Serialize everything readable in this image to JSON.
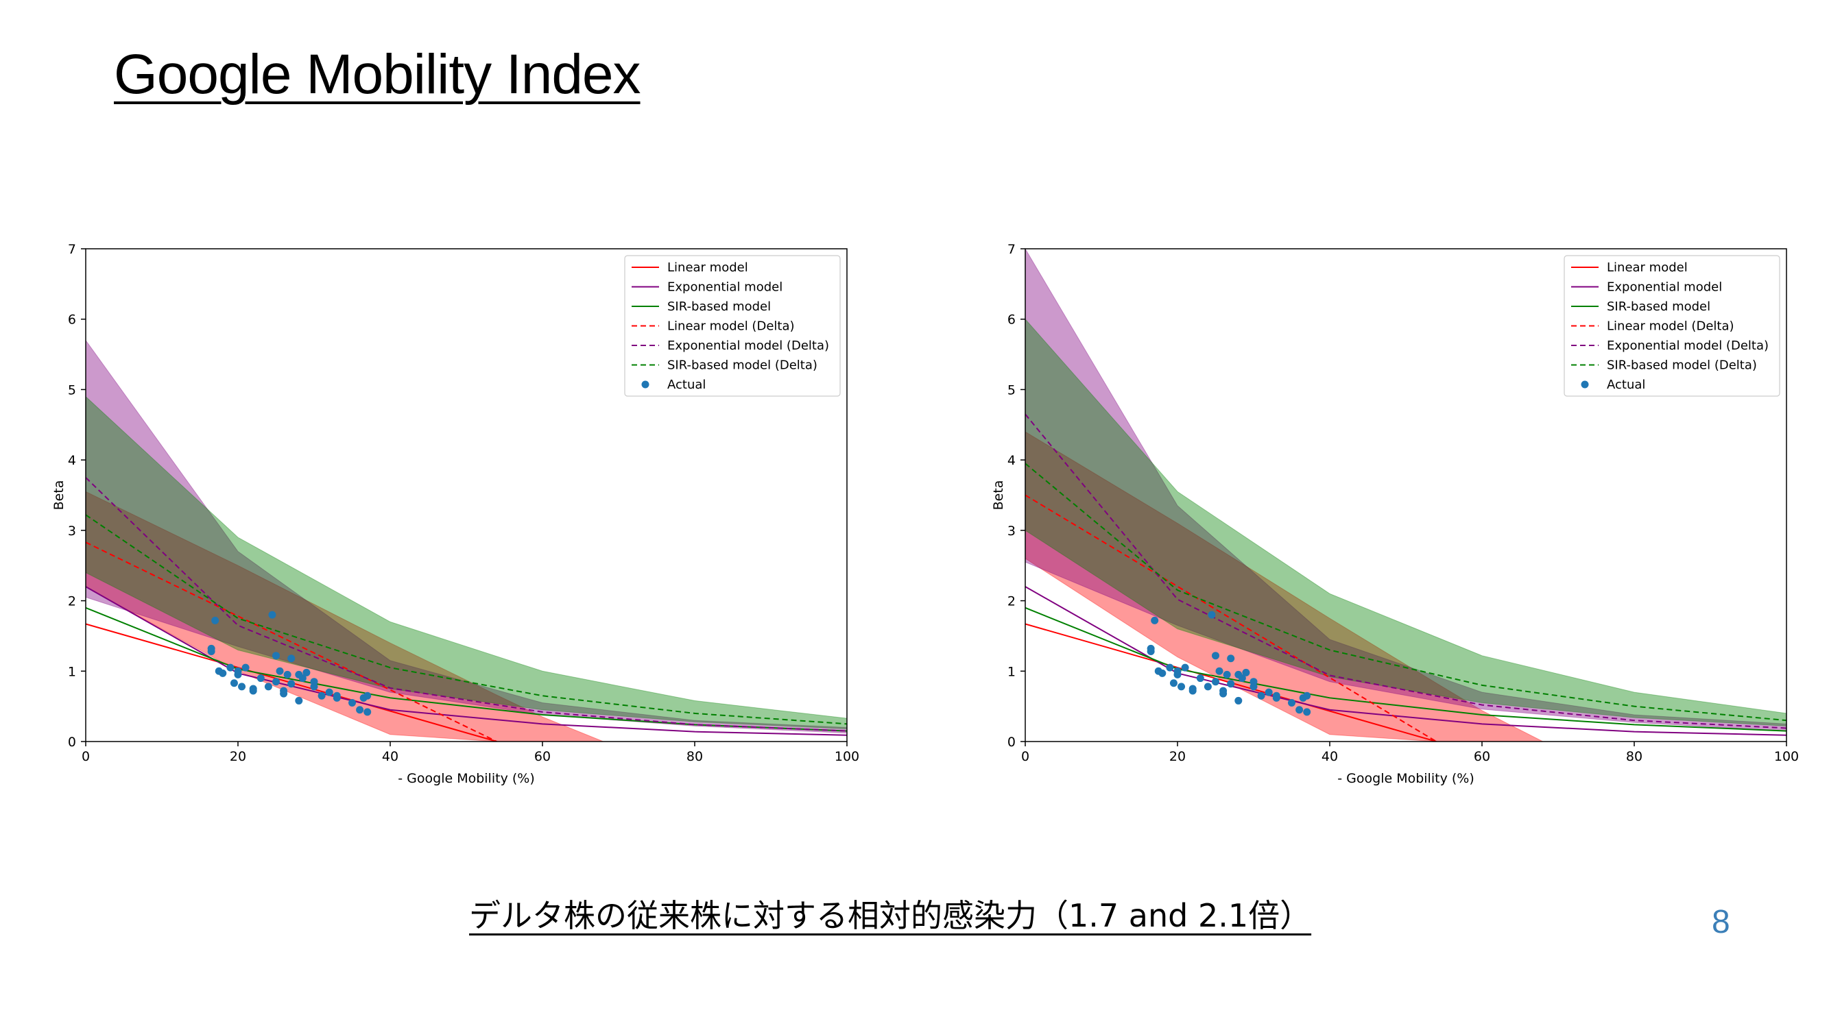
{
  "title": "Google Mobility Index",
  "footer": "デルタ株の従来株に対する相対的感染力（1.7 and 2.1倍）",
  "page_number": "8",
  "colors": {
    "linear": "#ff0000",
    "exponential": "#800080",
    "sir": "#008000",
    "actual": "#1f77b4"
  },
  "chart_data": [
    {
      "type": "line",
      "xlabel": "- Google Mobility (%)",
      "ylabel": "Beta",
      "xlim": [
        0,
        100
      ],
      "ylim": [
        0,
        7
      ],
      "x_ticks": [
        "0",
        "20",
        "40",
        "60",
        "80",
        "100"
      ],
      "y_ticks": [
        "0",
        "1",
        "2",
        "3",
        "4",
        "5",
        "6",
        "7"
      ],
      "legend_position": "top-right",
      "legend": [
        "Linear model",
        "Exponential model",
        "SIR-based model",
        "Linear model (Delta)",
        "Exponential model (Delta)",
        "SIR-based model (Delta)",
        "Actual"
      ],
      "series": [
        {
          "name": "Linear model",
          "style": "solid",
          "color": "#ff0000",
          "x": [
            0,
            54
          ],
          "y": [
            1.67,
            0
          ]
        },
        {
          "name": "Exponential model",
          "style": "solid",
          "color": "#800080",
          "x": [
            0,
            20,
            40,
            60,
            80,
            100
          ],
          "y": [
            2.2,
            0.97,
            0.45,
            0.25,
            0.14,
            0.09
          ]
        },
        {
          "name": "SIR-based model",
          "style": "solid",
          "color": "#008000",
          "x": [
            0,
            20,
            40,
            60,
            80,
            100
          ],
          "y": [
            1.9,
            1.03,
            0.62,
            0.38,
            0.24,
            0.15
          ]
        },
        {
          "name": "Linear model (Delta)",
          "style": "dashed",
          "color": "#ff0000",
          "x": [
            0,
            54
          ],
          "y": [
            2.83,
            0
          ]
        },
        {
          "name": "Exponential model (Delta)",
          "style": "dashed",
          "color": "#800080",
          "x": [
            0,
            20,
            40,
            60,
            80,
            100
          ],
          "y": [
            3.75,
            1.65,
            0.76,
            0.42,
            0.24,
            0.15
          ]
        },
        {
          "name": "SIR-based model (Delta)",
          "style": "dashed",
          "color": "#008000",
          "x": [
            0,
            20,
            40,
            60,
            80,
            100
          ],
          "y": [
            3.22,
            1.75,
            1.05,
            0.65,
            0.4,
            0.25
          ]
        }
      ],
      "bands": [
        {
          "color": "#ff0000",
          "x": [
            0,
            20,
            40,
            54,
            60,
            68,
            80,
            100
          ],
          "lower": [
            2.2,
            1.0,
            0.1,
            0,
            0,
            0,
            0,
            0
          ],
          "upper": [
            3.55,
            2.5,
            1.4,
            0.66,
            0.35,
            0,
            0,
            0
          ]
        },
        {
          "color": "#800080",
          "x": [
            0,
            20,
            40,
            60,
            80,
            100
          ],
          "lower": [
            2.05,
            1.35,
            0.7,
            0.38,
            0.22,
            0.12
          ],
          "upper": [
            5.7,
            2.7,
            1.15,
            0.55,
            0.3,
            0.2
          ]
        },
        {
          "color": "#008000",
          "x": [
            0,
            20,
            40,
            60,
            80,
            100
          ],
          "lower": [
            2.4,
            1.3,
            0.75,
            0.45,
            0.28,
            0.18
          ],
          "upper": [
            4.9,
            2.9,
            1.7,
            1.0,
            0.58,
            0.33
          ]
        }
      ],
      "actual": {
        "x": [
          16.5,
          16.5,
          17,
          17.5,
          18,
          19,
          19.5,
          20,
          20,
          20.5,
          21,
          22,
          22,
          23,
          24,
          24.5,
          25,
          25,
          25.5,
          26,
          26,
          26.5,
          27,
          27,
          28,
          28,
          28.5,
          29,
          30,
          30,
          31,
          32,
          33,
          33,
          35,
          36,
          36.5,
          37,
          37
        ],
        "y": [
          1.28,
          1.32,
          1.72,
          1.0,
          0.97,
          1.05,
          0.83,
          1.0,
          0.95,
          0.78,
          1.05,
          0.75,
          0.72,
          0.9,
          0.78,
          1.8,
          0.85,
          1.22,
          1.0,
          0.72,
          0.68,
          0.95,
          1.18,
          0.82,
          0.95,
          0.58,
          0.9,
          0.98,
          0.85,
          0.78,
          0.65,
          0.7,
          0.62,
          0.65,
          0.55,
          0.45,
          0.62,
          0.65,
          0.42
        ]
      }
    },
    {
      "type": "line",
      "xlabel": "- Google Mobility (%)",
      "ylabel": "Beta",
      "xlim": [
        0,
        100
      ],
      "ylim": [
        0,
        7
      ],
      "x_ticks": [
        "0",
        "20",
        "40",
        "60",
        "80",
        "100"
      ],
      "y_ticks": [
        "0",
        "1",
        "2",
        "3",
        "4",
        "5",
        "6",
        "7"
      ],
      "legend_position": "top-right",
      "legend": [
        "Linear model",
        "Exponential model",
        "SIR-based model",
        "Linear model (Delta)",
        "Exponential model (Delta)",
        "SIR-based model (Delta)",
        "Actual"
      ],
      "series": [
        {
          "name": "Linear model",
          "style": "solid",
          "color": "#ff0000",
          "x": [
            0,
            54
          ],
          "y": [
            1.67,
            0
          ]
        },
        {
          "name": "Exponential model",
          "style": "solid",
          "color": "#800080",
          "x": [
            0,
            20,
            40,
            60,
            80,
            100
          ],
          "y": [
            2.2,
            0.97,
            0.45,
            0.25,
            0.14,
            0.09
          ]
        },
        {
          "name": "SIR-based model",
          "style": "solid",
          "color": "#008000",
          "x": [
            0,
            20,
            40,
            60,
            80,
            100
          ],
          "y": [
            1.9,
            1.03,
            0.62,
            0.38,
            0.24,
            0.15
          ]
        },
        {
          "name": "Linear model (Delta)",
          "style": "dashed",
          "color": "#ff0000",
          "x": [
            0,
            54
          ],
          "y": [
            3.5,
            0
          ]
        },
        {
          "name": "Exponential model (Delta)",
          "style": "dashed",
          "color": "#800080",
          "x": [
            0,
            20,
            40,
            60,
            80,
            100
          ],
          "y": [
            4.65,
            2.02,
            0.94,
            0.52,
            0.3,
            0.19
          ]
        },
        {
          "name": "SIR-based model (Delta)",
          "style": "dashed",
          "color": "#008000",
          "x": [
            0,
            20,
            40,
            60,
            80,
            100
          ],
          "y": [
            3.95,
            2.15,
            1.3,
            0.8,
            0.5,
            0.3
          ]
        }
      ],
      "bands": [
        {
          "color": "#ff0000",
          "x": [
            0,
            20,
            40,
            54,
            60,
            68,
            80,
            100
          ],
          "lower": [
            2.6,
            1.2,
            0.1,
            0,
            0,
            0,
            0,
            0
          ],
          "upper": [
            4.4,
            3.1,
            1.75,
            0.83,
            0.44,
            0,
            0,
            0
          ]
        },
        {
          "color": "#800080",
          "x": [
            0,
            20,
            40,
            60,
            80,
            100
          ],
          "lower": [
            2.55,
            1.65,
            0.85,
            0.46,
            0.27,
            0.15
          ],
          "upper": [
            7.0,
            3.35,
            1.45,
            0.7,
            0.38,
            0.25
          ]
        },
        {
          "color": "#008000",
          "x": [
            0,
            20,
            40,
            60,
            80,
            100
          ],
          "lower": [
            3.0,
            1.6,
            0.92,
            0.55,
            0.34,
            0.22
          ],
          "upper": [
            6.0,
            3.55,
            2.1,
            1.22,
            0.7,
            0.4
          ]
        }
      ],
      "actual": {
        "x": [
          16.5,
          16.5,
          17,
          17.5,
          18,
          19,
          19.5,
          20,
          20,
          20.5,
          21,
          22,
          22,
          23,
          24,
          24.5,
          25,
          25,
          25.5,
          26,
          26,
          26.5,
          27,
          27,
          28,
          28,
          28.5,
          29,
          30,
          30,
          31,
          32,
          33,
          33,
          35,
          36,
          36.5,
          37,
          37
        ],
        "y": [
          1.28,
          1.32,
          1.72,
          1.0,
          0.97,
          1.05,
          0.83,
          1.0,
          0.95,
          0.78,
          1.05,
          0.75,
          0.72,
          0.9,
          0.78,
          1.8,
          0.85,
          1.22,
          1.0,
          0.72,
          0.68,
          0.95,
          1.18,
          0.82,
          0.95,
          0.58,
          0.9,
          0.98,
          0.85,
          0.78,
          0.65,
          0.7,
          0.62,
          0.65,
          0.55,
          0.45,
          0.62,
          0.65,
          0.42
        ]
      }
    }
  ]
}
